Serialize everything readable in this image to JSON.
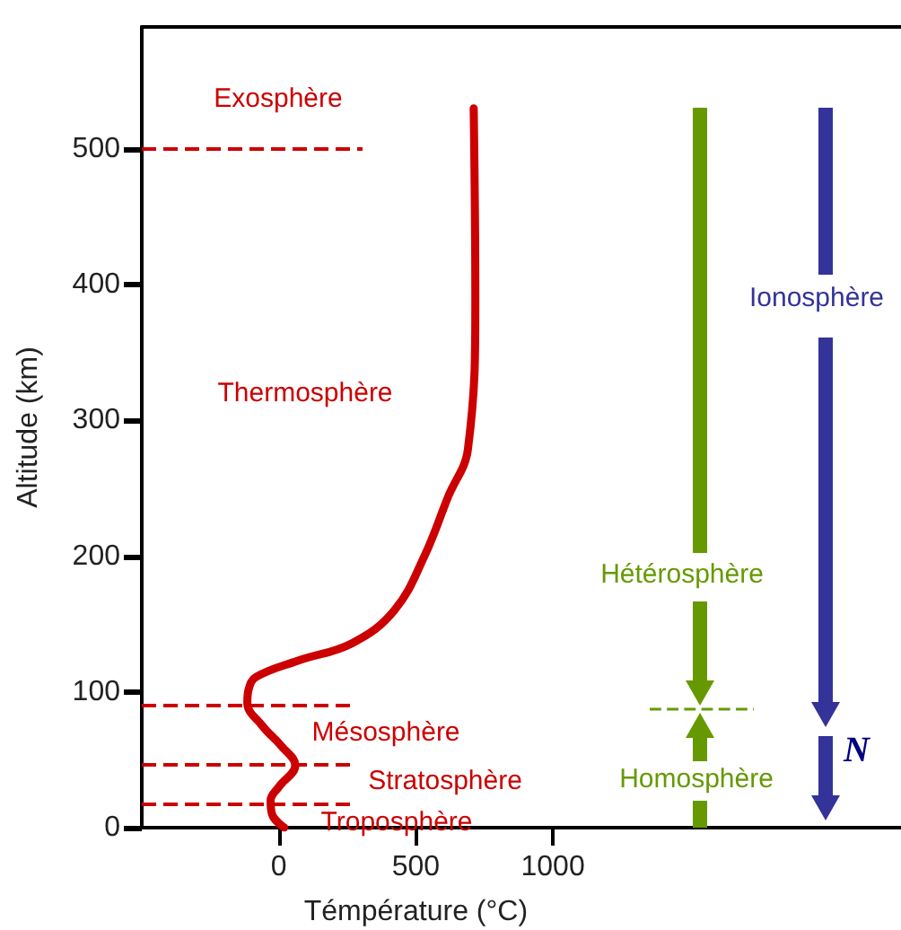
{
  "chart_data": {
    "type": "line",
    "xlabel": "Témpérature (°C)",
    "ylabel": "Altitude (km)",
    "xlim": [
      -500,
      2270
    ],
    "ylim": [
      0,
      590
    ],
    "xticks": [
      0,
      500,
      1000
    ],
    "yticks": [
      0,
      100,
      200,
      300,
      400,
      500
    ],
    "grid": false,
    "marker": "none",
    "line_style": "solid",
    "series": [
      {
        "color": "#cc0000",
        "x": [
          20,
          -25,
          -30,
          0,
          60,
          10,
          -60,
          -115,
          -110,
          -83,
          70,
          268,
          421,
          531,
          618,
          690,
          717,
          711
        ],
        "values": [
          0,
          10,
          20,
          30,
          46,
          60,
          75,
          92,
          102,
          111,
          123,
          136,
          160,
          200,
          244,
          279,
          389,
          530
        ]
      }
    ],
    "ref_lines": [
      {
        "axis": "y",
        "value": 500,
        "color": "#cc0000",
        "line_style": "dashed"
      },
      {
        "axis": "y",
        "value": 90,
        "color": "#cc0000",
        "line_style": "dashed"
      },
      {
        "axis": "y",
        "value": 47,
        "color": "#cc0000",
        "line_style": "dashed"
      },
      {
        "axis": "y",
        "value": 18,
        "color": "#cc0000",
        "line_style": "dashed"
      },
      {
        "axis": "y",
        "value": 87,
        "color": "#669900",
        "line_style": "dashed"
      }
    ],
    "annotations": [
      "Exosphère",
      "Thermosphère",
      "Mésosphère",
      "Stratosphère",
      "Troposphère",
      "Hétérosphère",
      "Homosphère",
      "Ionosphère",
      "N"
    ]
  }
}
